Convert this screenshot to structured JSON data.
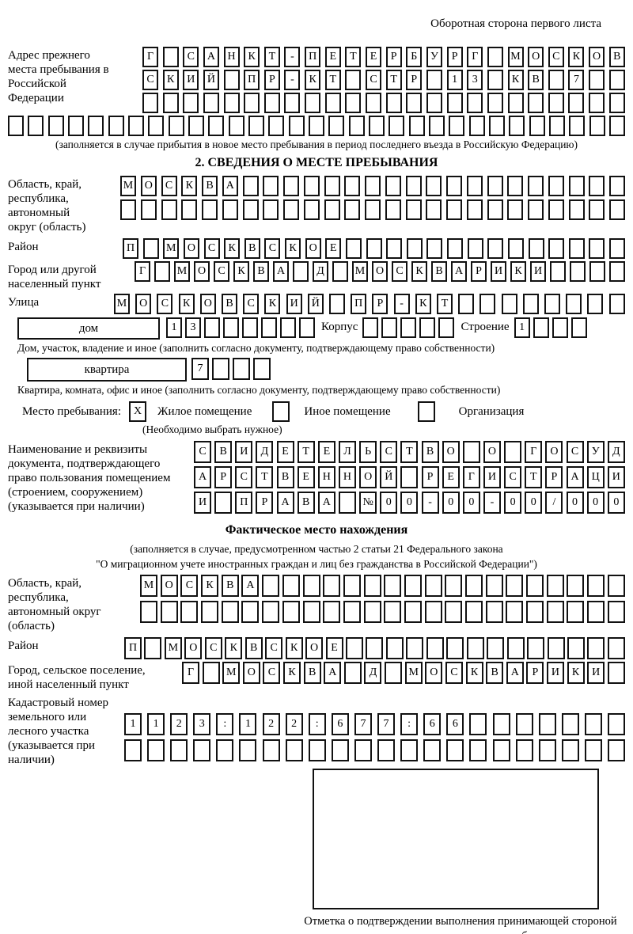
{
  "page_header": "Оборотная сторона первого листа",
  "prev_address": {
    "label": "Адрес прежнего места пребывания в Российской Федерации",
    "rows": [
      "Г САНКТ-ПЕТЕРБУРГ МОСКОВ",
      "СКИЙ ПР-КТ СТР 13 КВ 7",
      "",
      ""
    ],
    "note": "(заполняется в случае прибытия в новое место пребывания в период последнего въезда в Российскую Федерацию)"
  },
  "section2": {
    "title": "2. СВЕДЕНИЯ О МЕСТЕ ПРЕБЫВАНИЯ",
    "region_label": "Область, край, республика, автономный округ (область)",
    "region_rows": [
      "МОСКВА",
      ""
    ],
    "district_label": "Район",
    "district_value": "П МОСКВСКОЕ",
    "city_label": "Город или другой населенный пункт",
    "city_value": "Г МОСКВА Д МОСКВАРИКИ",
    "street_label": "Улица",
    "street_value": "МОСКОВСКИЙ ПР-КТ",
    "house_label": "дом",
    "house_value": "13",
    "korpus_label": "Корпус",
    "korpus_value": "",
    "stroenie_label": "Строение",
    "stroenie_value": "1",
    "house_note": "Дом, участок, владение и иное (заполнить согласно документу, подтверждающему право собственности)",
    "apartment_label": "квартира",
    "apartment_value": "7",
    "apartment_note": "Квартира, комната, офис и иное (заполнить согласно документу, подтверждающему право собственности)",
    "stay_type": {
      "label": "Место пребывания:",
      "options": [
        {
          "label": "Жилое помещение",
          "checked": "X"
        },
        {
          "label": "Иное помещение",
          "checked": ""
        },
        {
          "label": "Организация",
          "checked": ""
        }
      ],
      "note": "(Необходимо выбрать нужное)"
    },
    "document_label": "Наименование и реквизиты документа, подтверждающего право пользования помещением (строением, сооружением) (указывается при наличии)",
    "document_rows": [
      "СВИДЕТЕЛЬСТВО О ГОСУД",
      "АРСТВЕННОЙ РЕГИСТРАЦИ",
      "И ПРАВА №00-00-00/000"
    ]
  },
  "actual_location": {
    "title": "Фактическое место нахождения",
    "note1": "(заполняется в случае, предусмотренном частью 2 статьи 21 Федерального закона",
    "note2": "\"О миграционном учете иностранных граждан и лиц без гражданства в Российской Федерации\")",
    "region_label": "Область, край, республика, автономный округ (область)",
    "region_rows": [
      "МОСКВА",
      ""
    ],
    "district_label": "Район",
    "district_value": "П МОСКВСКОЕ",
    "city_label": "Город, сельское поселение, иной населенный пункт",
    "city_value": "Г МОСКВА Д МОСКВАРИКИ",
    "cadastral_label": "Кадастровый номер земельного или лесного участка (указывается при наличии)",
    "cadastral_rows": [
      "1123:122:677:66",
      ""
    ]
  },
  "stamp_note": "Отметка о подтверждении выполнения принимающей стороной и иностранным гражданином или лицом без гражданства действий, необходимых для его постановки на учет по месту пребывания"
}
